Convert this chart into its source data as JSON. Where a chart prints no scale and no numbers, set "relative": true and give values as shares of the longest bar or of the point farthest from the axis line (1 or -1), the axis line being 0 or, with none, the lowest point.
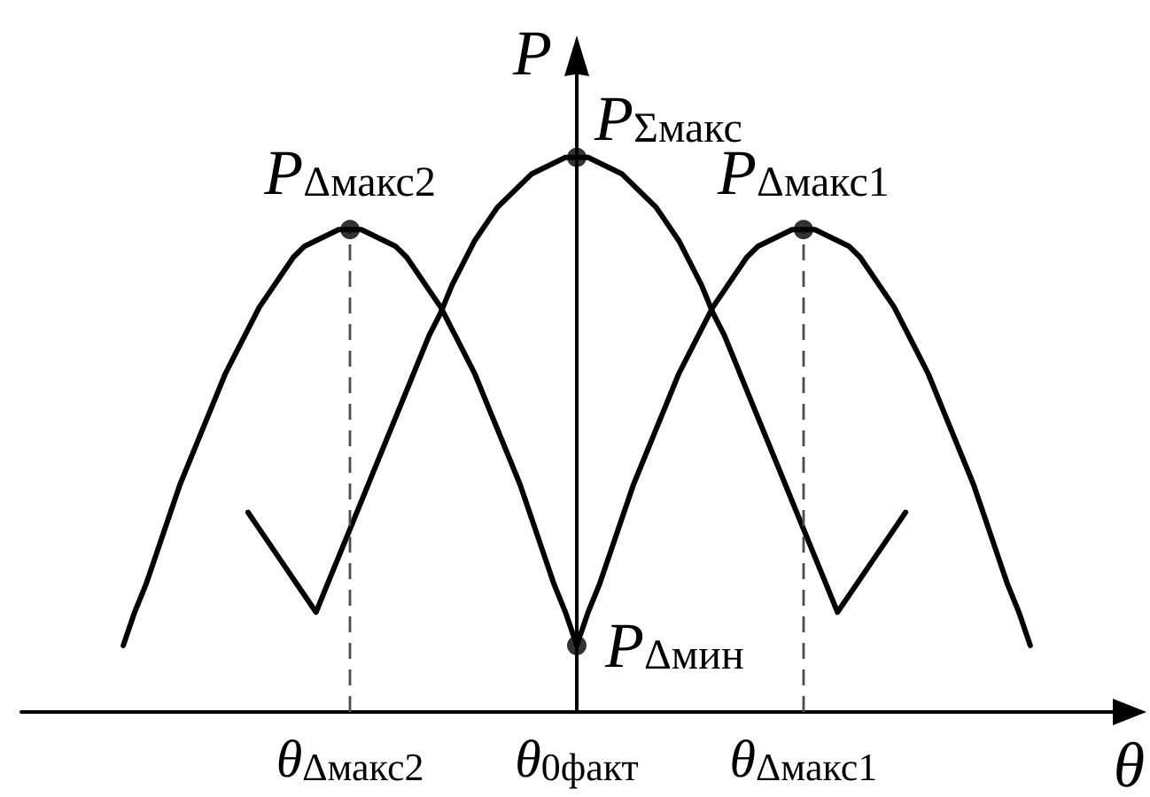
{
  "chart_data": {
    "type": "line",
    "relative": true,
    "xlabel": "θ",
    "ylabel": "P",
    "categories": [
      null,
      null,
      null,
      null,
      null,
      null,
      null,
      null,
      null,
      null,
      null,
      null,
      null,
      null,
      null,
      null,
      null,
      null,
      null,
      null,
      null,
      null,
      null,
      null,
      null,
      null,
      null,
      null,
      null,
      "θ$_{Δмакс2}$",
      null,
      null,
      null,
      null,
      null,
      null,
      null,
      null,
      null,
      null,
      null,
      null,
      null,
      null,
      null,
      null,
      null,
      null,
      null,
      "θ$_{0факт}$",
      null,
      null,
      null,
      null,
      null,
      null,
      null,
      null,
      null,
      null,
      null,
      null,
      null,
      null,
      null,
      null,
      null,
      null,
      null,
      "θ$_{Δмакс1}$",
      null,
      null,
      null,
      null,
      null,
      null,
      null,
      null,
      null,
      null,
      null,
      null,
      null,
      null,
      null,
      null,
      null,
      null,
      null,
      null,
      null,
      null,
      null,
      null,
      null,
      null,
      null,
      null,
      null
    ],
    "marker": "none",
    "line_style": "solid",
    "grid": false,
    "series": [
      {
        "color": "#000000",
        "values": [
          null,
          null,
          null,
          null,
          null,
          null,
          null,
          null,
          null,
          0.12,
          0.18,
          0.23,
          0.29,
          0.35,
          0.41,
          0.46,
          0.51,
          0.56,
          0.61,
          0.65,
          0.69,
          0.73,
          0.76,
          0.79,
          0.82,
          0.84,
          0.85,
          0.86,
          0.87,
          0.87,
          0.87,
          0.86,
          0.85,
          0.84,
          0.82,
          0.79,
          0.76,
          0.73,
          0.69,
          0.65,
          0.61,
          0.56,
          0.51,
          0.46,
          0.41,
          0.35,
          0.29,
          0.23,
          0.18,
          0.12,
          0.18,
          0.23,
          0.29,
          0.35,
          0.41,
          0.46,
          0.51,
          0.56,
          0.61,
          0.65,
          0.69,
          0.73,
          0.76,
          0.79,
          0.82,
          0.84,
          0.85,
          0.86,
          0.87,
          0.87,
          0.87,
          0.86,
          0.85,
          0.84,
          0.82,
          0.79,
          0.76,
          0.73,
          0.69,
          0.65,
          0.61,
          0.56,
          0.51,
          0.46,
          0.41,
          0.35,
          0.29,
          0.23,
          0.18,
          0.12,
          null,
          null,
          null,
          null,
          null,
          null,
          null,
          null,
          null
        ]
      },
      {
        "color": "#000000",
        "values": [
          null,
          null,
          null,
          null,
          null,
          null,
          null,
          null,
          null,
          null,
          null,
          null,
          null,
          null,
          null,
          null,
          null,
          null,
          null,
          null,
          0.36,
          0.33,
          0.3,
          0.27,
          0.24,
          0.21,
          0.18,
          0.23,
          0.28,
          0.33,
          0.38,
          0.43,
          0.48,
          0.53,
          0.58,
          0.63,
          0.68,
          0.72,
          0.77,
          0.81,
          0.85,
          0.88,
          0.91,
          0.93,
          0.95,
          0.97,
          0.98,
          0.99,
          1,
          1,
          1,
          0.99,
          0.98,
          0.97,
          0.95,
          0.93,
          0.91,
          0.88,
          0.85,
          0.81,
          0.77,
          0.72,
          0.68,
          0.63,
          0.58,
          0.53,
          0.48,
          0.43,
          0.38,
          0.33,
          0.28,
          0.23,
          0.18,
          0.21,
          0.24,
          0.27,
          0.3,
          0.33,
          0.36,
          null,
          null,
          null,
          null,
          null,
          null,
          null,
          null,
          null,
          null,
          null,
          null,
          null,
          null,
          null,
          null,
          null,
          null,
          null,
          null
        ]
      },
      {
        "type": "scatter",
        "color": "#000000",
        "marker": "circle",
        "x": [
          "θ$_{Δмакс2}$",
          "θ$_{0факт}$",
          "θ$_{Δмакс1}$",
          "θ$_{0факт}$"
        ],
        "values": [
          0.87,
          1,
          0.87,
          0.12
        ]
      }
    ],
    "ref_lines": [
      {
        "axis": "x",
        "value": "θ$_{Δмакс2}$",
        "color": "#4d4d4d",
        "line_style": "dashed"
      },
      {
        "axis": "x",
        "value": "θ$_{Δмакс1}$",
        "color": "#4d4d4d",
        "line_style": "dashed"
      }
    ],
    "annotations": [
      {
        "text": "P$_{Σмакс}$",
        "x": "θ$_{0факт}$",
        "y": 1
      },
      {
        "text": "P$_{Δмакс2}$",
        "x": "θ$_{Δмакс2}$",
        "y": 0.87
      },
      {
        "text": "P$_{Δмакс1}$",
        "x": "θ$_{Δмакс1}$",
        "y": 0.87
      },
      {
        "text": "P$_{Δмин}$",
        "x": "θ$_{0факт}$",
        "y": 0.12
      }
    ]
  }
}
